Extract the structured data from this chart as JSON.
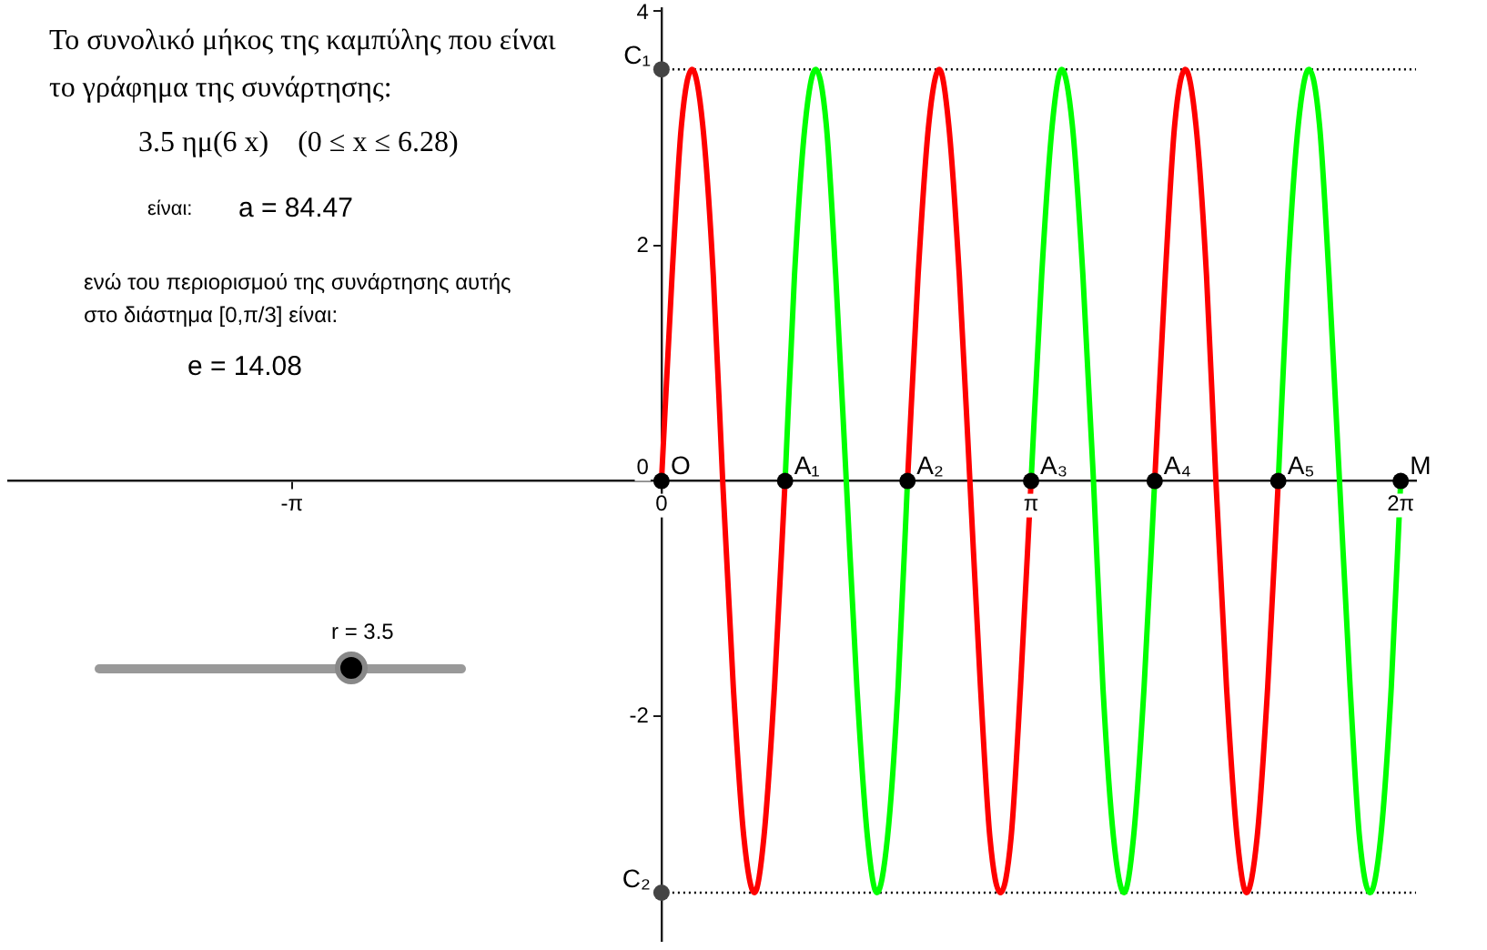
{
  "chart_data": {
    "type": "line",
    "x": [
      0,
      0.09,
      0.17,
      0.26,
      0.35,
      0.44,
      0.52,
      0.61,
      0.7,
      0.79,
      0.87,
      0.96,
      1.05,
      1.13,
      1.22,
      1.31,
      1.4,
      1.48,
      1.57,
      1.66,
      1.75,
      1.83,
      1.92,
      2.01,
      2.09,
      2.18,
      2.27,
      2.36,
      2.44,
      2.53,
      2.62,
      2.71,
      2.79,
      2.88,
      2.97,
      3.05,
      3.14,
      3.23,
      3.32,
      3.4,
      3.49,
      3.58,
      3.67,
      3.75,
      3.84,
      3.93,
      4.01,
      4.1,
      4.19,
      4.28,
      4.36,
      4.45,
      4.54,
      4.63,
      4.71,
      4.8,
      4.89,
      4.97,
      5.06,
      5.15,
      5.24,
      5.32,
      5.41,
      5.5,
      5.59,
      5.67,
      5.76,
      5.85,
      5.93,
      6.02,
      6.11,
      6.2,
      6.28
    ],
    "xlim": [
      -5.55,
      6.41
    ],
    "ylim": [
      -3.91,
      4.02
    ],
    "xticks": [
      {
        "value": -3.14,
        "label": "-π"
      },
      0,
      {
        "value": 3.14,
        "label": "π"
      },
      {
        "value": 6.28,
        "label": "2π"
      }
    ],
    "yticks": [
      -2,
      0,
      2,
      4
    ],
    "series": [
      {
        "type": "line",
        "color": "#000000",
        "line_style": "dotted",
        "x": [
          0,
          6.41
        ],
        "values": [
          3.5,
          3.5
        ]
      },
      {
        "type": "line",
        "color": "#000000",
        "line_style": "dotted",
        "x": [
          0,
          6.41
        ],
        "values": [
          -3.5,
          -3.5
        ]
      },
      {
        "type": "line",
        "color": "#ff0000",
        "values": [
          0,
          1.75,
          3.03,
          3.5,
          3.03,
          1.75,
          0,
          -1.75,
          -3.03,
          -3.5,
          -3.03,
          -1.75,
          0,
          null,
          null,
          null,
          null,
          null,
          null,
          null,
          null,
          null,
          null,
          null,
          0,
          1.75,
          3.03,
          3.5,
          3.03,
          1.75,
          0,
          -1.75,
          -3.03,
          -3.5,
          -3.03,
          -1.75,
          0,
          null,
          null,
          null,
          null,
          null,
          null,
          null,
          null,
          null,
          null,
          null,
          0,
          1.75,
          3.03,
          3.5,
          3.03,
          1.75,
          0,
          -1.75,
          -3.03,
          -3.5,
          -3.03,
          -1.75,
          0,
          null,
          null,
          null,
          null,
          null,
          null,
          null,
          null,
          null,
          null,
          null,
          null
        ]
      },
      {
        "type": "line",
        "color": "#00ff00",
        "values": [
          null,
          null,
          null,
          null,
          null,
          null,
          null,
          null,
          null,
          null,
          null,
          null,
          0,
          1.75,
          3.03,
          3.5,
          3.03,
          1.75,
          0,
          -1.75,
          -3.03,
          -3.5,
          -3.03,
          -1.75,
          0,
          null,
          null,
          null,
          null,
          null,
          null,
          null,
          null,
          null,
          null,
          null,
          0,
          1.75,
          3.03,
          3.5,
          3.03,
          1.75,
          0,
          -1.75,
          -3.03,
          -3.5,
          -3.03,
          -1.75,
          0,
          null,
          null,
          null,
          null,
          null,
          null,
          null,
          null,
          null,
          null,
          null,
          0,
          1.75,
          3.03,
          3.5,
          3.03,
          1.75,
          0,
          -1.75,
          -3.03,
          -3.5,
          -3.03,
          -1.75,
          0
        ]
      },
      {
        "type": "scatter",
        "color": "#000000",
        "marker": "circle",
        "x": [
          0,
          1.05,
          2.09,
          3.14,
          4.19,
          5.24,
          6.28
        ],
        "values": [
          0,
          0,
          0,
          0,
          0,
          0,
          0
        ]
      },
      {
        "type": "scatter",
        "color": "#444444",
        "marker": "circle",
        "x": [
          0,
          0
        ],
        "values": [
          3.5,
          -3.5
        ]
      }
    ],
    "annotations": [
      "Το συνολικό μήκος της καμπύλης που είναι το γράφημα της συνάρτησης:",
      "3.5 ημ(6 x)    (0 ≤ x ≤ 6.28)",
      "είναι:",
      "a = 84.47",
      "ενώ του περιορισμού της συνάρτησης αυτής στο διάστημα [0,π/3] είναι:",
      "e = 14.08",
      "r = 3.5",
      {
        "text": "O",
        "x": 0,
        "y": 0
      },
      {
        "text": "A₁",
        "x": 1.05,
        "y": 0
      },
      {
        "text": "A₂",
        "x": 2.09,
        "y": 0
      },
      {
        "text": "A₃",
        "x": 3.14,
        "y": 0
      },
      {
        "text": "A₄",
        "x": 4.19,
        "y": 0
      },
      {
        "text": "A₅",
        "x": 5.24,
        "y": 0
      },
      {
        "text": "M",
        "x": 6.28,
        "y": 0
      },
      {
        "text": "C₁",
        "x": 0,
        "y": 3.5
      },
      {
        "text": "C₂",
        "x": 0,
        "y": -3.5
      }
    ]
  }
}
